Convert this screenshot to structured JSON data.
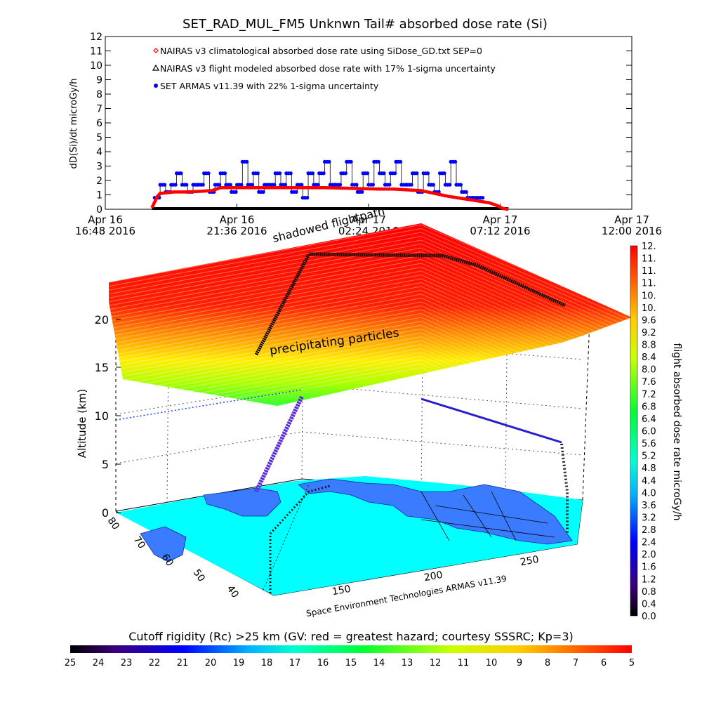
{
  "chart_data": [
    {
      "type": "line",
      "title": "SET_RAD_MUL_FM5 Unknwn Tail#  absorbed dose rate (Si)",
      "ylabel": "dD(Si)/dt microGy/h",
      "ylim": [
        0,
        12
      ],
      "yticks": [
        "0",
        "1",
        "2",
        "3",
        "4",
        "5",
        "6",
        "7",
        "8",
        "9",
        "10",
        "11",
        "12"
      ],
      "xlim_hours": [
        0,
        19.2
      ],
      "xticks": [
        {
          "h": 0,
          "line1": "Apr 16",
          "line2": "16:48 2016"
        },
        {
          "h": 4.8,
          "line1": "Apr 16",
          "line2": "21:36 2016"
        },
        {
          "h": 9.6,
          "line1": "Apr 17",
          "line2": "02:24 2016"
        },
        {
          "h": 14.4,
          "line1": "Apr 17",
          "line2": "07:12 2016"
        },
        {
          "h": 19.2,
          "line1": "Apr 17",
          "line2": "12:00 2016"
        }
      ],
      "legend_position": "top-left",
      "series": [
        {
          "name": "NAIRAS v3 climatological absorbed dose rate using SiDose_GD.txt SEP=0",
          "color": "#ff0000",
          "marker": "diamond",
          "x": [
            1.7,
            1.8,
            1.9,
            2.0,
            2.5,
            3.0,
            3.5,
            3.9,
            4.2,
            5.0,
            6.0,
            7.0,
            8.0,
            9.0,
            10.0,
            10.5,
            11.0,
            11.5,
            12.0,
            12.5,
            13.0,
            13.5,
            14.0,
            14.3,
            14.5,
            14.7
          ],
          "y": [
            0.1,
            0.5,
            0.9,
            1.1,
            1.2,
            1.2,
            1.25,
            1.3,
            1.5,
            1.5,
            1.5,
            1.5,
            1.5,
            1.45,
            1.4,
            1.4,
            1.35,
            1.3,
            1.1,
            0.9,
            0.75,
            0.6,
            0.45,
            0.25,
            0.05,
            0.0
          ]
        },
        {
          "name": "NAIRAS v3 flight modeled absorbed dose rate with 17% 1-sigma uncertainty",
          "color": "#000000",
          "marker": "triangle",
          "x": [
            1.7,
            4.8,
            9.6,
            14.7
          ],
          "y": [
            0,
            0,
            0,
            0
          ]
        },
        {
          "name": "SET ARMAS v11.39 with 22% 1-sigma uncertainty",
          "color": "#0000ff",
          "marker": "dot",
          "x": [
            1.8,
            2.0,
            2.2,
            2.4,
            2.6,
            2.8,
            3.0,
            3.2,
            3.4,
            3.6,
            3.8,
            4.0,
            4.2,
            4.4,
            4.6,
            4.8,
            5.0,
            5.2,
            5.4,
            5.6,
            5.8,
            6.0,
            6.2,
            6.4,
            6.6,
            6.8,
            7.0,
            7.2,
            7.4,
            7.6,
            7.8,
            8.0,
            8.2,
            8.4,
            8.6,
            8.8,
            9.0,
            9.2,
            9.4,
            9.6,
            9.8,
            10.0,
            10.2,
            10.4,
            10.6,
            10.8,
            11.0,
            11.2,
            11.4,
            11.6,
            11.8,
            12.0,
            12.2,
            12.4,
            12.6,
            12.8,
            13.0,
            13.2,
            13.4,
            13.6
          ],
          "y": [
            0.8,
            1.7,
            1.2,
            1.7,
            2.5,
            1.7,
            1.2,
            1.7,
            1.7,
            2.5,
            1.2,
            1.7,
            2.5,
            1.7,
            1.2,
            1.7,
            3.3,
            1.7,
            2.5,
            1.2,
            1.7,
            1.7,
            2.5,
            1.7,
            2.5,
            1.2,
            1.7,
            0.8,
            2.5,
            1.7,
            2.5,
            3.3,
            1.7,
            1.7,
            2.5,
            3.3,
            1.7,
            1.2,
            2.5,
            1.7,
            3.3,
            2.5,
            1.7,
            2.5,
            3.3,
            1.7,
            1.7,
            2.5,
            1.2,
            2.5,
            1.7,
            1.2,
            2.5,
            1.7,
            3.3,
            1.7,
            1.2,
            0.8,
            0.8,
            0.8
          ]
        }
      ]
    },
    {
      "type": "heatmap",
      "annotations": [
        "shadowed flightpath",
        "precipitating particles",
        "Space Environment Technologies ARMAS v11.39"
      ],
      "zlabel": "Altitude (km)",
      "zticks": [
        "0",
        "5",
        "10",
        "15",
        "20"
      ],
      "longitude_ticks": [
        "150",
        "200",
        "250"
      ],
      "latitude_ticks": [
        "80",
        "70",
        "60",
        "50",
        "40"
      ],
      "colorbar_label": "flight absorbed dose rate microGy/h",
      "colorbar_ticks": [
        "0.0",
        "0.4",
        "0.8",
        "1.2",
        "1.6",
        "2.0",
        "2.4",
        "2.8",
        "3.2",
        "3.6",
        "4.0",
        "4.4",
        "4.8",
        "5.2",
        "5.6",
        "6.0",
        "6.4",
        "6.8",
        "7.2",
        "7.6",
        "8.0",
        "8.4",
        "8.8",
        "9.2",
        "9.6",
        "10.",
        "10.",
        "11.",
        "11.",
        "11.",
        "12."
      ],
      "cutoff_label": "Cutoff rigidity (Rc) >25 km (GV: red = greatest hazard; courtesy SSSRC; Kp=3)",
      "cutoff_ticks": [
        "25",
        "24",
        "23",
        "22",
        "21",
        "20",
        "19",
        "18",
        "17",
        "16",
        "15",
        "14",
        "13",
        "12",
        "11",
        "10",
        "9",
        "8",
        "7",
        "6",
        "5"
      ],
      "colors": {
        "ocean": "#00ffff",
        "land": "#3b7bff",
        "layer_top": "#ff0000",
        "layer_mid": "#ffff00",
        "layer_low": "#00ff33"
      }
    }
  ]
}
